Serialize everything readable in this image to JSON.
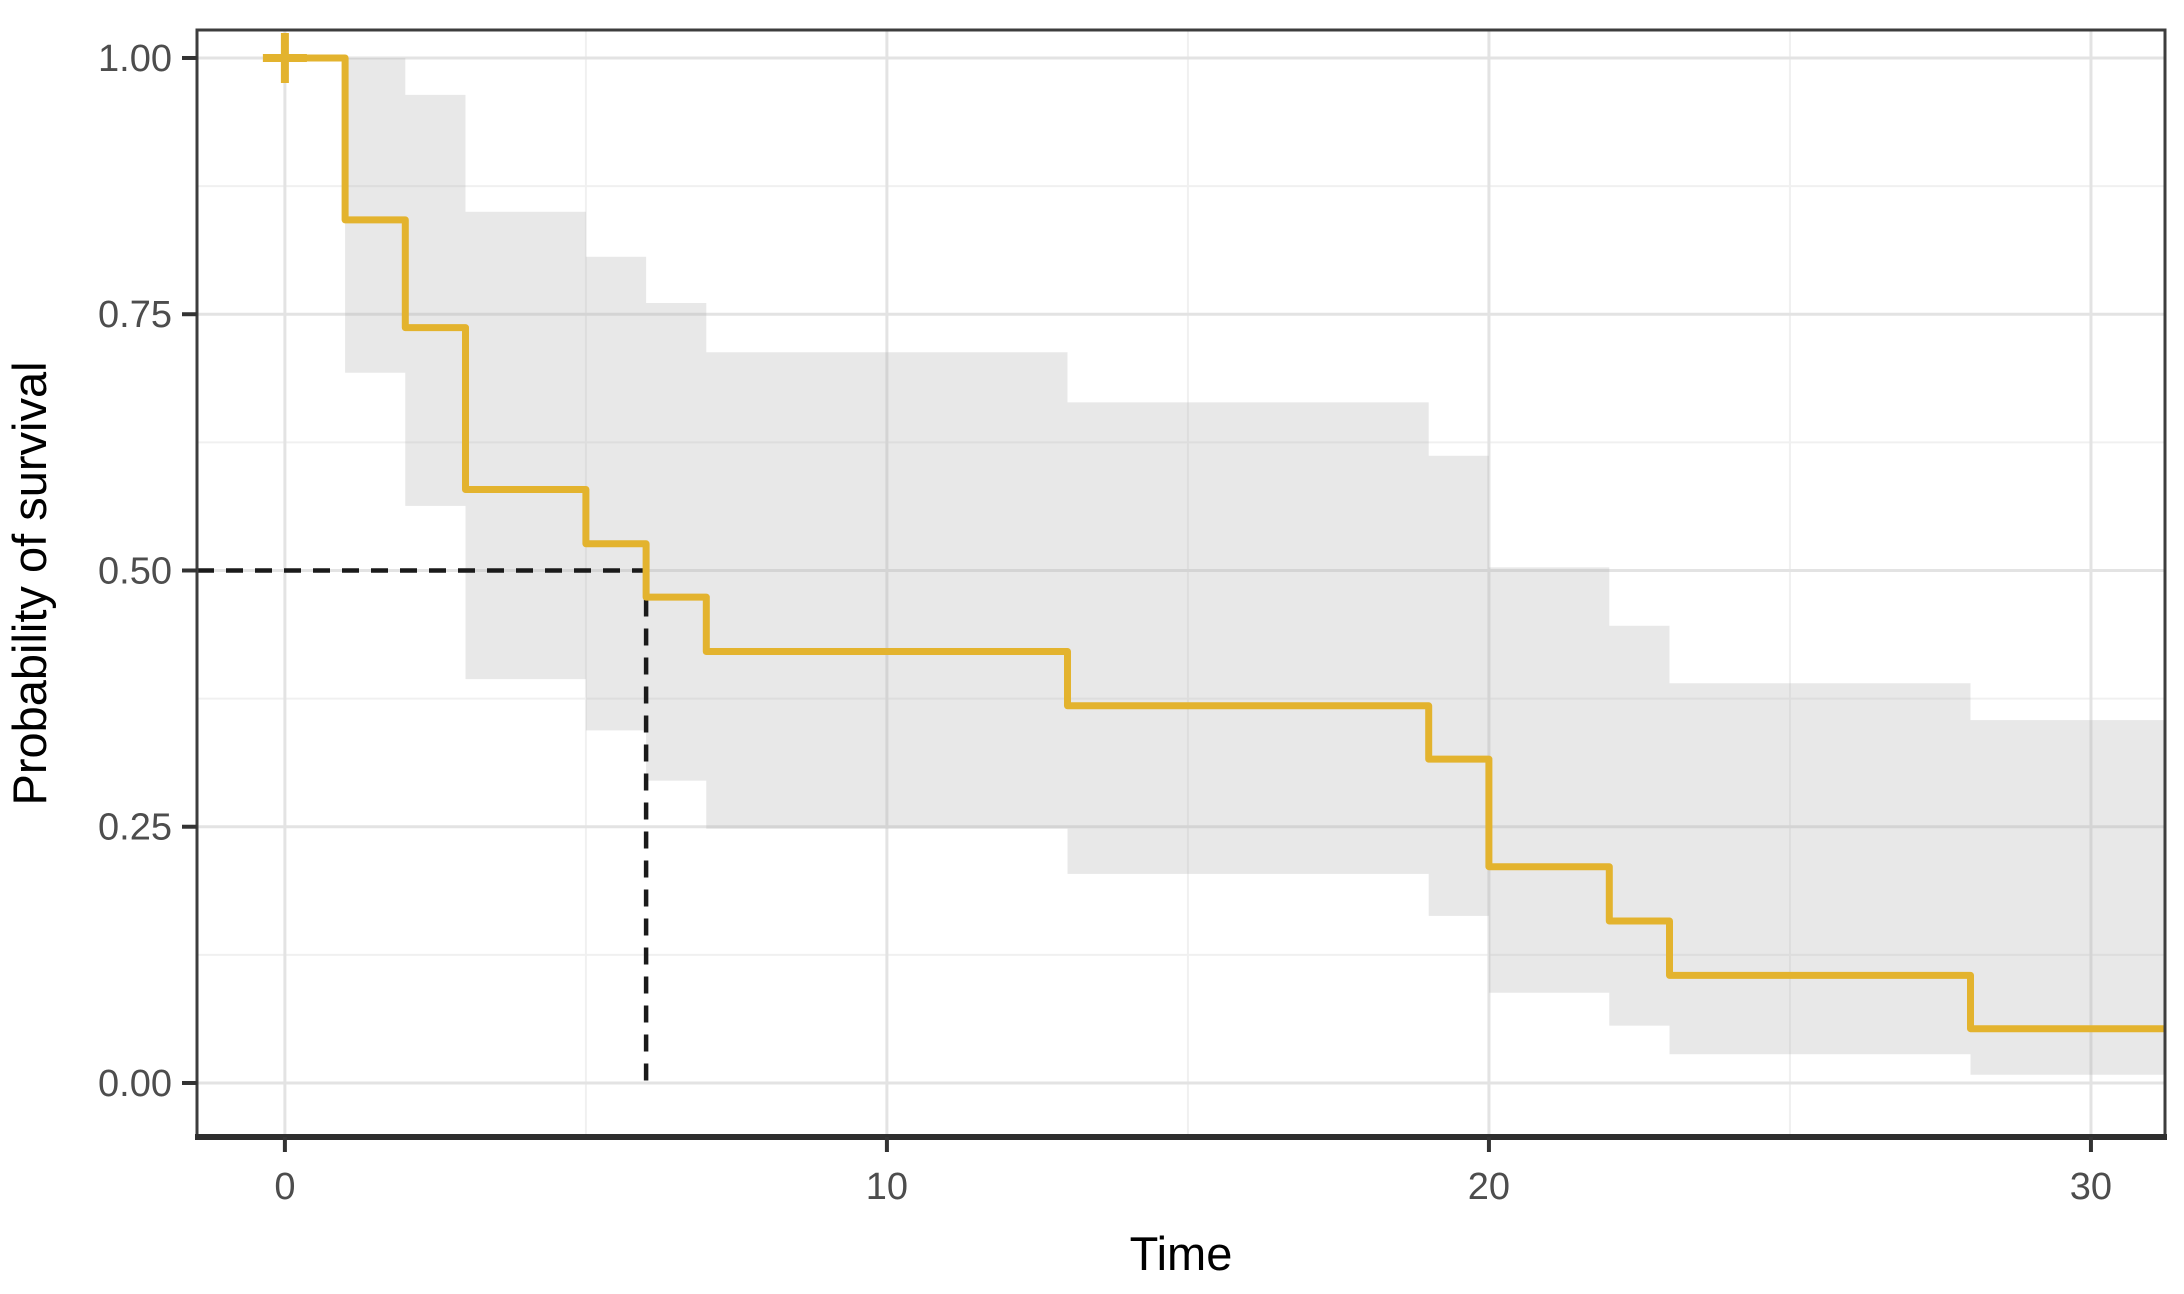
{
  "figure": {
    "xlabel": "Time",
    "ylabel": "Probability of survival"
  },
  "colors": {
    "curve": "#E3B32E",
    "censor_mark": "#E3B32E",
    "confidence_band": "rgba(179,179,179,0.30)",
    "grid_major": "#E3E3E3",
    "grid_minor": "#F0F0F0",
    "panel_border": "#3D3D3D",
    "axis_line": "#2E2E2E",
    "tick_mark": "#333333",
    "tick_text": "#4d4d4d",
    "axis_title_text": "#000000",
    "median_dash": "#1a1a1a",
    "background": "#ffffff"
  },
  "chart_data": {
    "type": "line",
    "subtype": "kaplan-meier-step",
    "title": "",
    "xlabel": "Time",
    "ylabel": "Probability of survival",
    "xlim": [
      -1.46,
      31.23
    ],
    "ylim": [
      -0.0527,
      1.0273
    ],
    "grid": "on",
    "legend": "none",
    "x_ticks": [
      0,
      10,
      20,
      30
    ],
    "x_tick_labels": [
      "0",
      "10",
      "20",
      "30"
    ],
    "x_minor_ticks": [
      5,
      15,
      25
    ],
    "y_ticks": [
      0.0,
      0.25,
      0.5,
      0.75,
      1.0
    ],
    "y_tick_labels": [
      "0.00",
      "0.25",
      "0.50",
      "0.75",
      "1.00"
    ],
    "y_minor_ticks": [
      0.125,
      0.375,
      0.625,
      0.875
    ],
    "series": [
      {
        "name": "survival",
        "end_time": 31.23,
        "steps": [
          {
            "t": 0,
            "s": 1.0,
            "lo": null,
            "hi": null
          },
          {
            "t": 1,
            "s": 0.842,
            "lo": 0.693,
            "hi": 1.0
          },
          {
            "t": 2,
            "s": 0.737,
            "lo": 0.563,
            "hi": 0.964
          },
          {
            "t": 3,
            "s": 0.579,
            "lo": 0.394,
            "hi": 0.85
          },
          {
            "t": 5,
            "s": 0.526,
            "lo": 0.344,
            "hi": 0.806
          },
          {
            "t": 6,
            "s": 0.474,
            "lo": 0.295,
            "hi": 0.761
          },
          {
            "t": 7,
            "s": 0.421,
            "lo": 0.248,
            "hi": 0.713
          },
          {
            "t": 13,
            "s": 0.368,
            "lo": 0.204,
            "hi": 0.664
          },
          {
            "t": 19,
            "s": 0.316,
            "lo": 0.163,
            "hi": 0.612
          },
          {
            "t": 20,
            "s": 0.211,
            "lo": 0.088,
            "hi": 0.503
          },
          {
            "t": 22,
            "s": 0.158,
            "lo": 0.056,
            "hi": 0.446
          },
          {
            "t": 23,
            "s": 0.105,
            "lo": 0.028,
            "hi": 0.39
          },
          {
            "t": 28,
            "s": 0.053,
            "lo": 0.008,
            "hi": 0.354
          }
        ]
      }
    ],
    "censored": [
      {
        "time": 0,
        "surv": 1.0
      }
    ],
    "median_reference": {
      "time": 6,
      "surv": 0.5
    }
  }
}
